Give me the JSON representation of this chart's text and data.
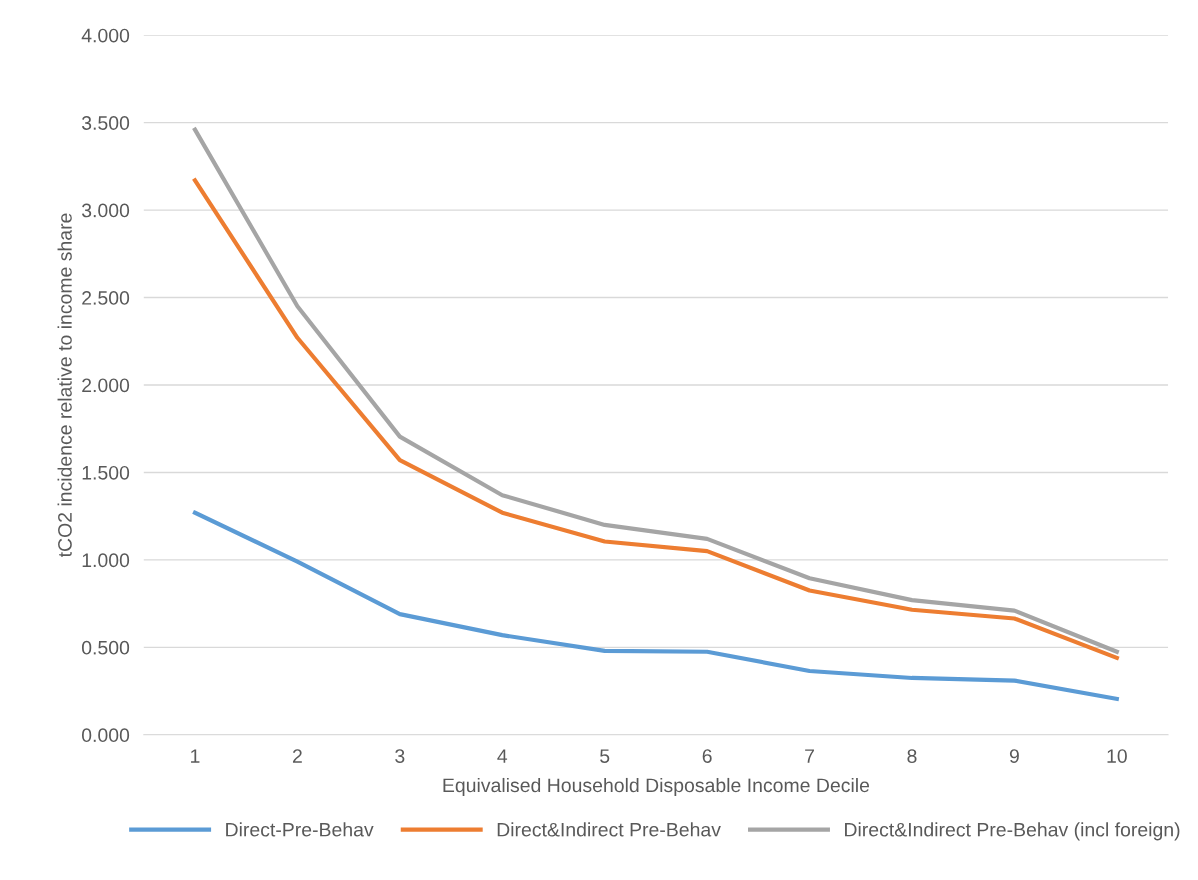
{
  "chart_data": {
    "type": "line",
    "xlabel": "Equivalised Household Disposable Income Decile",
    "ylabel": "tCO2 incidence relative to income share",
    "categories": [
      "1",
      "2",
      "3",
      "4",
      "5",
      "6",
      "7",
      "8",
      "9",
      "10"
    ],
    "series": [
      {
        "name": "Direct-Pre-Behav",
        "color": "#5b9bd5",
        "values": [
          1.27,
          0.99,
          0.69,
          0.57,
          0.48,
          0.475,
          0.365,
          0.325,
          0.31,
          0.205
        ]
      },
      {
        "name": "Direct&Indirect Pre-Behav",
        "color": "#ed7d31",
        "values": [
          3.17,
          2.27,
          1.57,
          1.27,
          1.105,
          1.05,
          0.825,
          0.715,
          0.665,
          0.44
        ]
      },
      {
        "name": "Direct&Indirect Pre-Behav (incl foreign)",
        "color": "#a5a5a5",
        "values": [
          3.46,
          2.45,
          1.705,
          1.37,
          1.2,
          1.12,
          0.895,
          0.77,
          0.71,
          0.475
        ]
      }
    ],
    "ylim": [
      0,
      4
    ],
    "yticks": [
      {
        "value": 0,
        "label": "0.000"
      },
      {
        "value": 0.5,
        "label": "0.500"
      },
      {
        "value": 1,
        "label": "1.000"
      },
      {
        "value": 1.5,
        "label": "1.500"
      },
      {
        "value": 2,
        "label": "2.000"
      },
      {
        "value": 2.5,
        "label": "2.500"
      },
      {
        "value": 3,
        "label": "3.000"
      },
      {
        "value": 3.5,
        "label": "3.500"
      },
      {
        "value": 4,
        "label": "4.000"
      }
    ],
    "grid": "y",
    "legend": "bottom",
    "marker": "none",
    "line_style": "solid"
  }
}
